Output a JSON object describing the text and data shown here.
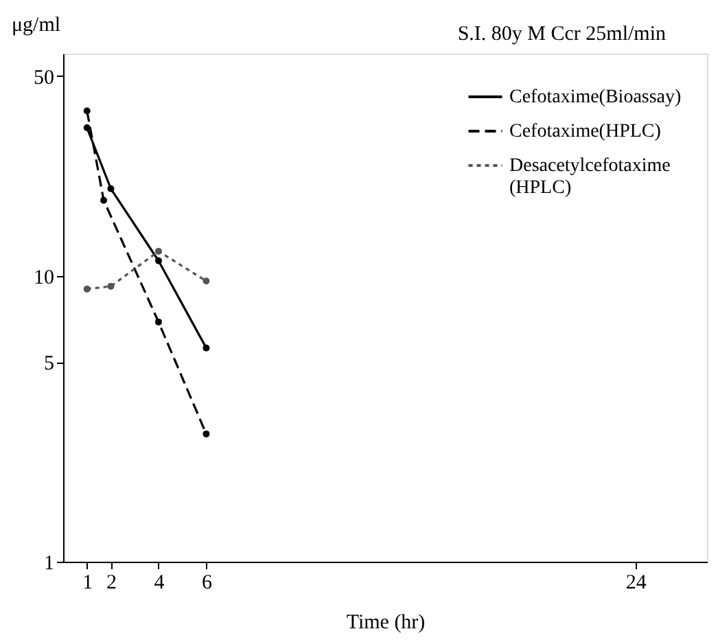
{
  "chart_data": {
    "type": "line",
    "title": "S.I. 80y M Ccr 25ml/min",
    "xlabel": "Time (hr)",
    "ylabel": "μg/ml",
    "log": "y",
    "xlim": [
      0,
      27
    ],
    "xticks": [
      1,
      2,
      4,
      6,
      24
    ],
    "ylim": [
      1,
      60
    ],
    "yticks": [
      1,
      5,
      10,
      50
    ],
    "grid": false,
    "legend": "top right",
    "marker": "circle",
    "series": [
      {
        "name": "Cefotaxime(Bioassay)",
        "color": "#000000",
        "line_style": "solid",
        "x": [
          1,
          2,
          4,
          6
        ],
        "values": [
          33,
          20.2,
          11.3,
          5.6
        ]
      },
      {
        "name": "Cefotaxime(HPLC)",
        "color": "#000000",
        "line_style": "dashed",
        "x": [
          1,
          1.7,
          4,
          6
        ],
        "values": [
          37.8,
          18.4,
          6.9,
          2.8
        ]
      },
      {
        "name": "Desacetylcefotaxime\n(HPLC)",
        "color": "#555555",
        "line_style": "dotted",
        "x": [
          1,
          2,
          4,
          6
        ],
        "values": [
          9.0,
          9.2,
          12.2,
          9.6
        ]
      }
    ]
  }
}
